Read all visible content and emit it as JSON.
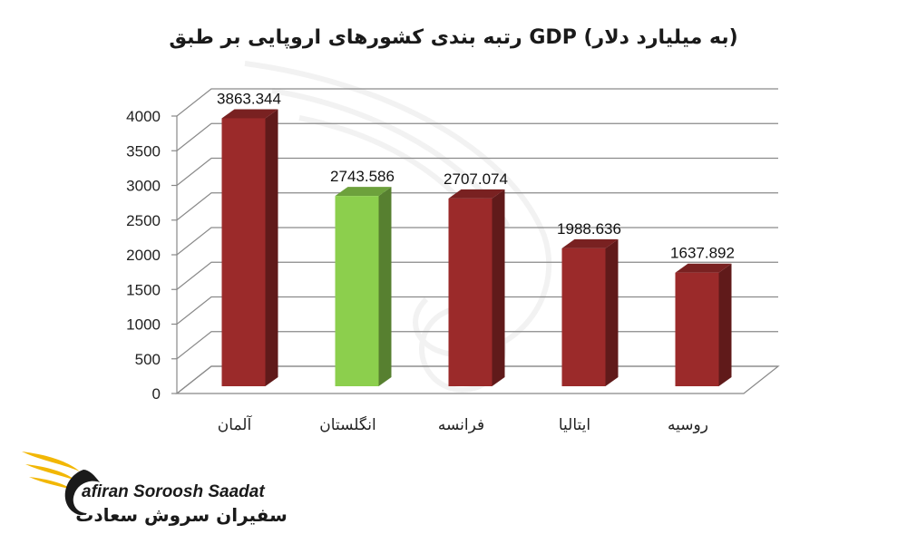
{
  "chart_data": {
    "type": "bar",
    "title": "رتبه بندی  کشورهای اروپایی بر طبق GDP (به میلیارد دلار)",
    "categories": [
      "آلمان",
      "انگلستان",
      "فرانسه",
      "ایتالیا",
      "روسیه"
    ],
    "values": [
      3863.344,
      2743.586,
      2707.074,
      1988.636,
      1637.892
    ],
    "data_labels": [
      "3863.344",
      "2743.586",
      "2707.074",
      "1988.636",
      "1637.892"
    ],
    "colors": [
      "#9b2a2a",
      "#8ccf4d",
      "#9b2a2a",
      "#9b2a2a",
      "#9b2a2a"
    ],
    "yticks": [
      0,
      500,
      1000,
      1500,
      2000,
      2500,
      3000,
      3500,
      4000
    ],
    "ylim": [
      0,
      4000
    ],
    "xlabel": "",
    "ylabel": "",
    "grid": true,
    "style": "3d-column"
  },
  "logo": {
    "text_en": "afiran Soroosh Saadat",
    "text_fa": "سفیران سروش سعادت",
    "colors": {
      "wing": "#f2b705",
      "text": "#1a1a1a"
    }
  }
}
